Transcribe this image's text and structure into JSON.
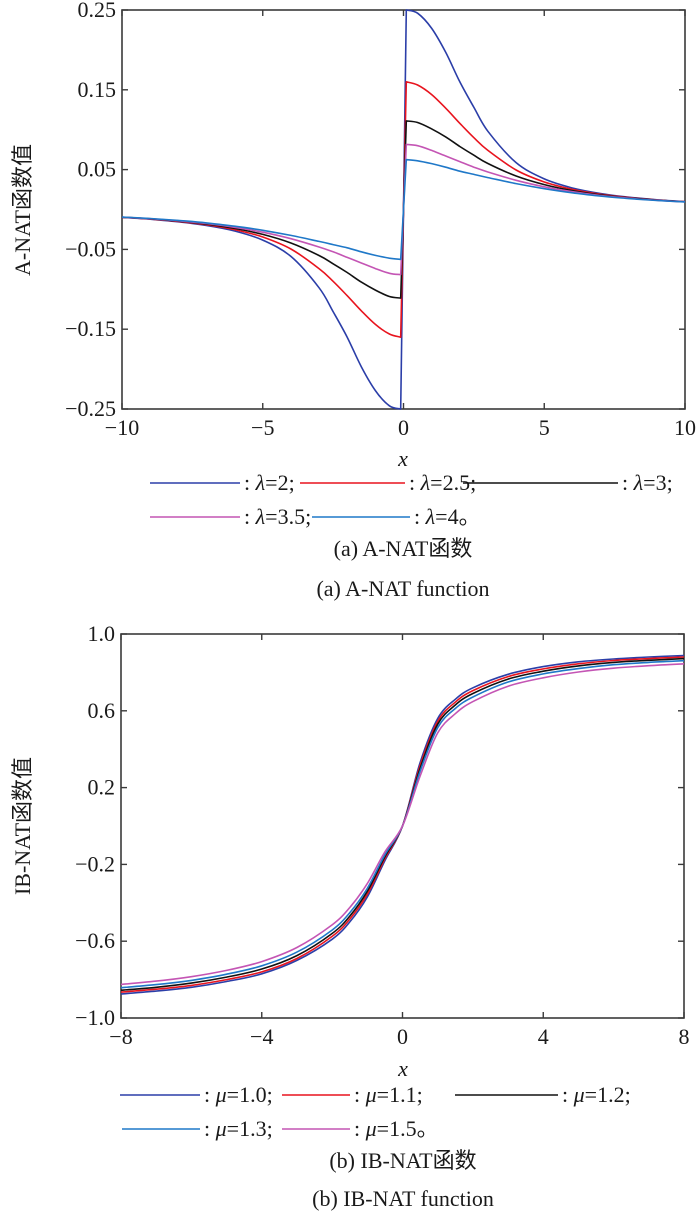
{
  "chart_data": [
    {
      "type": "line",
      "title": "",
      "xlabel": "x",
      "ylabel": "A-NAT函数值",
      "xlim": [
        -10,
        10
      ],
      "ylim": [
        -0.25,
        0.25
      ],
      "xticks": [
        "−10",
        "−5",
        "0",
        "5",
        "10"
      ],
      "xtick_values": [
        -10,
        -5,
        0,
        5,
        10
      ],
      "yticks": [
        "0.25",
        "0.15",
        "0.05",
        "−0.05",
        "−0.15",
        "−0.25"
      ],
      "ytick_values": [
        0.25,
        0.15,
        0.05,
        -0.05,
        -0.15,
        -0.25
      ],
      "grid": false,
      "legend_position": "below",
      "x": [
        -10,
        -9,
        -8,
        -7,
        -6,
        -5,
        -4,
        -3,
        -2.5,
        -2,
        -1.5,
        -1,
        -0.5,
        -0.1,
        0.1,
        0.5,
        1,
        1.5,
        2,
        2.5,
        3,
        4,
        5,
        6,
        7,
        8,
        9,
        10
      ],
      "series": [
        {
          "name": "λ=2",
          "legend": ": λ=2;",
          "color": "#2b3ea8",
          "values": [
            -0.0099,
            -0.0122,
            -0.0154,
            -0.02,
            -0.027,
            -0.0384,
            -0.0588,
            -0.098,
            -0.128,
            -0.16,
            -0.197,
            -0.227,
            -0.246,
            -0.25,
            0.25,
            0.246,
            0.227,
            0.197,
            0.16,
            0.128,
            0.098,
            0.0588,
            0.0384,
            0.027,
            0.02,
            0.0154,
            0.0122,
            0.0099
          ]
        },
        {
          "name": "λ=2.5",
          "legend": ": λ=2.5;",
          "color": "#e8141e",
          "values": [
            -0.0098,
            -0.0119,
            -0.0149,
            -0.0191,
            -0.0252,
            -0.0345,
            -0.0495,
            -0.074,
            -0.09,
            -0.108,
            -0.127,
            -0.144,
            -0.156,
            -0.16,
            0.16,
            0.156,
            0.144,
            0.127,
            0.108,
            0.09,
            0.074,
            0.0495,
            0.0345,
            0.0252,
            0.0191,
            0.0149,
            0.0119,
            0.0098
          ]
        },
        {
          "name": "λ=3",
          "legend": ": λ=3;",
          "color": "#111111",
          "values": [
            -0.0097,
            -0.0117,
            -0.0145,
            -0.0183,
            -0.0237,
            -0.0312,
            -0.042,
            -0.0576,
            -0.068,
            -0.079,
            -0.091,
            -0.101,
            -0.109,
            -0.111,
            0.111,
            0.109,
            0.101,
            0.091,
            0.079,
            0.068,
            0.0576,
            0.042,
            0.0312,
            0.0237,
            0.0183,
            0.0145,
            0.0117,
            0.0097
          ]
        },
        {
          "name": "λ=3.5",
          "legend": ": λ=3.5;",
          "color": "#c455b4",
          "values": [
            -0.0096,
            -0.0115,
            -0.0141,
            -0.0176,
            -0.0223,
            -0.0285,
            -0.0366,
            -0.047,
            -0.053,
            -0.06,
            -0.067,
            -0.074,
            -0.08,
            -0.0816,
            0.0816,
            0.08,
            0.074,
            0.067,
            0.06,
            0.053,
            0.047,
            0.0366,
            0.0285,
            0.0223,
            0.0176,
            0.0141,
            0.0115,
            0.0096
          ]
        },
        {
          "name": "λ=4",
          "legend": ": λ=4。",
          "color": "#1f78c8",
          "values": [
            -0.0095,
            -0.0113,
            -0.0137,
            -0.0168,
            -0.0209,
            -0.0261,
            -0.0325,
            -0.04,
            -0.044,
            -0.048,
            -0.053,
            -0.0575,
            -0.061,
            -0.0625,
            0.0625,
            0.061,
            0.0575,
            0.053,
            0.048,
            0.044,
            0.04,
            0.0325,
            0.0261,
            0.0209,
            0.0168,
            0.0137,
            0.0113,
            0.0095
          ]
        }
      ],
      "caption_cn": "(a) A-NAT函数",
      "caption_en": "(a) A-NAT function"
    },
    {
      "type": "line",
      "title": "",
      "xlabel": "x",
      "ylabel": "IB-NAT函数值",
      "xlim": [
        -8,
        8
      ],
      "ylim": [
        -1.0,
        1.0
      ],
      "xticks": [
        "−8",
        "−4",
        "0",
        "4",
        "8"
      ],
      "xtick_values": [
        -8,
        -4,
        0,
        4,
        8
      ],
      "yticks": [
        "1.0",
        "0.6",
        "0.2",
        "−0.2",
        "−0.6",
        "−1.0"
      ],
      "ytick_values": [
        1.0,
        0.6,
        0.2,
        -0.2,
        -0.6,
        -1.0
      ],
      "grid": false,
      "legend_position": "below",
      "x": [
        -8,
        -7,
        -6,
        -5,
        -4,
        -3,
        -2,
        -1.5,
        -1,
        -0.5,
        0,
        0.5,
        1,
        1.5,
        2,
        3,
        4,
        5,
        6,
        7,
        8
      ],
      "series": [
        {
          "name": "μ=1.0",
          "legend": ": μ=1.0;",
          "color": "#2b3ea8",
          "values": [
            -0.875,
            -0.86,
            -0.84,
            -0.81,
            -0.77,
            -0.7,
            -0.59,
            -0.5,
            -0.37,
            -0.18,
            0.0,
            0.33,
            0.56,
            0.66,
            0.72,
            0.79,
            0.83,
            0.855,
            0.87,
            0.88,
            0.888
          ]
        },
        {
          "name": "μ=1.1",
          "legend": ": μ=1.1;",
          "color": "#e8141e",
          "values": [
            -0.865,
            -0.85,
            -0.83,
            -0.8,
            -0.76,
            -0.69,
            -0.575,
            -0.485,
            -0.355,
            -0.17,
            0.0,
            0.315,
            0.545,
            0.645,
            0.705,
            0.778,
            0.818,
            0.845,
            0.862,
            0.872,
            0.88
          ]
        },
        {
          "name": "μ=1.2",
          "legend": ": μ=1.2;",
          "color": "#111111",
          "values": [
            -0.855,
            -0.84,
            -0.818,
            -0.787,
            -0.745,
            -0.675,
            -0.56,
            -0.47,
            -0.34,
            -0.16,
            0.0,
            0.3,
            0.53,
            0.63,
            0.69,
            0.765,
            0.806,
            0.834,
            0.852,
            0.863,
            0.872
          ]
        },
        {
          "name": "μ=1.3",
          "legend": ": μ=1.3;",
          "color": "#1f78c8",
          "values": [
            -0.842,
            -0.826,
            -0.804,
            -0.772,
            -0.728,
            -0.657,
            -0.542,
            -0.452,
            -0.325,
            -0.15,
            0.0,
            0.285,
            0.512,
            0.612,
            0.672,
            0.75,
            0.792,
            0.82,
            0.84,
            0.852,
            0.861
          ]
        },
        {
          "name": "μ=1.5",
          "legend": ": μ=1.5。",
          "color": "#c455b4",
          "values": [
            -0.825,
            -0.808,
            -0.785,
            -0.752,
            -0.706,
            -0.633,
            -0.515,
            -0.425,
            -0.3,
            -0.135,
            0.0,
            0.26,
            0.485,
            0.585,
            0.648,
            0.728,
            0.772,
            0.802,
            0.822,
            0.835,
            0.845
          ]
        }
      ],
      "caption_cn": "(b) IB-NAT函数",
      "caption_en": "(b) IB-NAT function"
    }
  ]
}
